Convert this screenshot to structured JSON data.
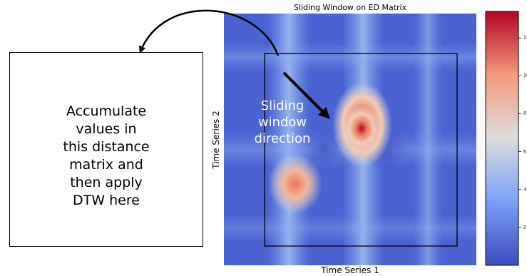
{
  "diagram": {
    "left_box_text": "Accumulate\nvalues in\nthis distance\nmatrix and\nthen apply\nDTW here",
    "heatmap": {
      "title": "Sliding Window on ED Matrix",
      "xlabel": "Time Series 1",
      "ylabel": "Time Series 2",
      "overlay_text": "Sliding\nwindow\ndirection"
    },
    "colorbar": {
      "ticks": [
        "2",
        "4",
        "6",
        "8",
        "10",
        "12"
      ],
      "colormap": "coolwarm",
      "colors": {
        "low": "#3b4cc0",
        "mid": "#dddddd",
        "high": "#b40426"
      }
    }
  }
}
